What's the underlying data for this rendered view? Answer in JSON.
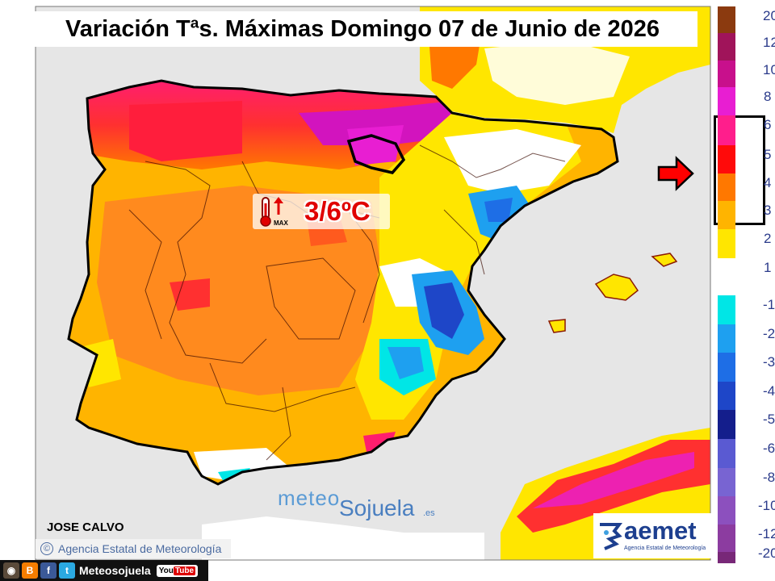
{
  "title": "Variación Tªs. Máximas Domingo 07 de Junio de 2026",
  "callout": {
    "text": "3/6ºC",
    "icon": "thermometer-max-icon",
    "icon_label": "MAX"
  },
  "author": "JOSE CALVO",
  "agency_credit": "Agencia Estatal de Meteorología",
  "copyright_symbol": "©",
  "watermark": {
    "part1": "meteo",
    "part2": "Sojuela",
    "suffix": ".es"
  },
  "aemet_logo": {
    "name": "aemet",
    "subtitle": "Agencia Estatal de Meteorología"
  },
  "social": {
    "label": "Meteosojuela",
    "youtube": "You",
    "youtube_tube": "Tube"
  },
  "legend": {
    "items": [
      {
        "label": "20",
        "color": "#8b3a0f"
      },
      {
        "label": "12",
        "color": "#a0145a"
      },
      {
        "label": "10",
        "color": "#c8108c"
      },
      {
        "label": "8",
        "color": "#e81ed2"
      },
      {
        "label": "6",
        "color": "#ff1e8c"
      },
      {
        "label": "5",
        "color": "#ff0a0a"
      },
      {
        "label": "4",
        "color": "#ff7800"
      },
      {
        "label": "3",
        "color": "#ffb400"
      },
      {
        "label": "2",
        "color": "#ffe600"
      },
      {
        "label": "1",
        "color": "#ffffff"
      },
      {
        "label": "-1",
        "color": "#00e6e6"
      },
      {
        "label": "-2",
        "color": "#1ea0f0"
      },
      {
        "label": "-3",
        "color": "#1e6ee6"
      },
      {
        "label": "-4",
        "color": "#1e46c8"
      },
      {
        "label": "-5",
        "color": "#141e8c"
      },
      {
        "label": "-6",
        "color": "#5a5ad2"
      },
      {
        "label": "-8",
        "color": "#7864d2"
      },
      {
        "label": "-10",
        "color": "#8c50be"
      },
      {
        "label": "-12",
        "color": "#8c3ca0"
      },
      {
        "label": "-20",
        "color": "#782878"
      }
    ],
    "highlighted_range": [
      "6",
      "3"
    ]
  },
  "colors": {
    "sea": "#e6e6e6",
    "accent_red": "#e00000",
    "border": "#000000"
  }
}
